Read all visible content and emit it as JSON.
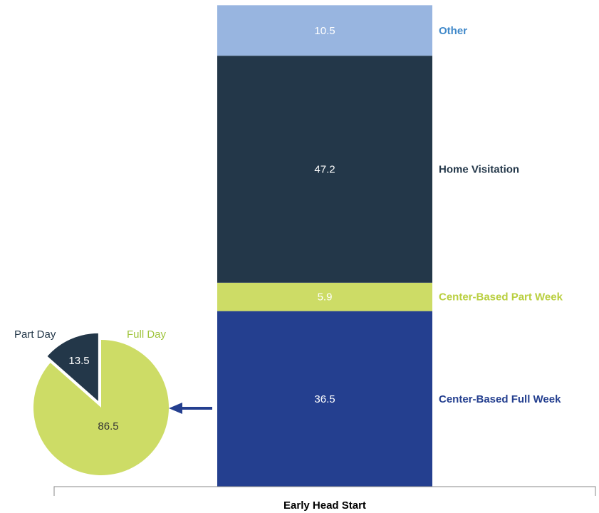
{
  "chart_data": [
    {
      "type": "bar",
      "stacked": true,
      "categories": [
        "Early Head Start"
      ],
      "series": [
        {
          "name": "Center-Based Full Week",
          "values": [
            36.5
          ],
          "color": "#243f8f",
          "label_color": "#243f8f"
        },
        {
          "name": "Center-Based Part Week",
          "values": [
            5.9
          ],
          "color": "#cddc66",
          "label_color": "#b9cf3f"
        },
        {
          "name": "Home Visitation",
          "values": [
            47.2
          ],
          "color": "#233749",
          "label_color": "#233749"
        },
        {
          "name": "Other",
          "values": [
            10.5
          ],
          "color": "#98b5e0",
          "label_color": "#3f88c9"
        }
      ],
      "ylim": [
        0,
        100
      ],
      "grid": false,
      "legend": "labels right of bars"
    },
    {
      "type": "pie",
      "slices": [
        {
          "label": "Full Day",
          "value": 86.5,
          "color": "#cddc66",
          "label_color": "#9fc43b"
        },
        {
          "label": "Part Day",
          "value": 13.5,
          "color": "#233749",
          "label_color": "#233749"
        }
      ],
      "exploded": "Part Day",
      "note": "breakdown of Center-Based Full Week"
    }
  ],
  "colors": {
    "arrow": "#243f8f",
    "axis": "#888888"
  }
}
